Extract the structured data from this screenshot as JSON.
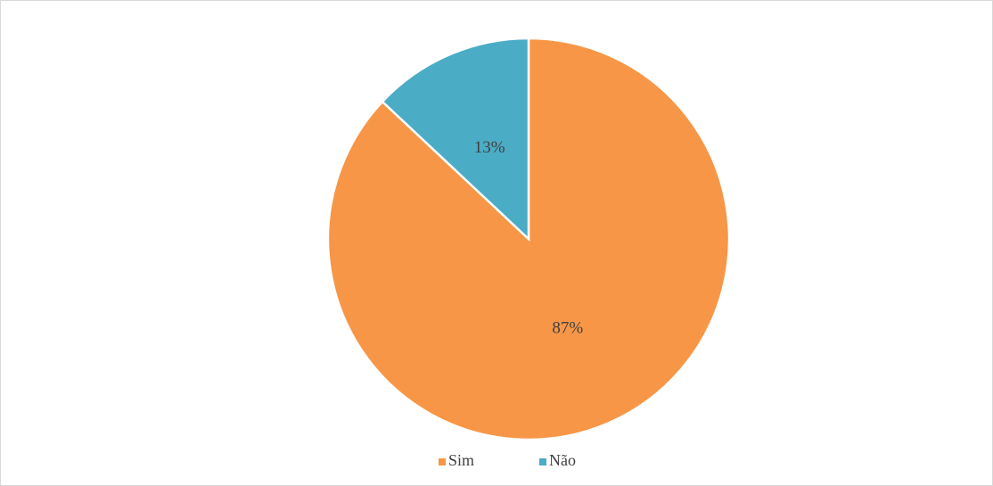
{
  "chart_data": {
    "type": "pie",
    "categories": [
      "Sim",
      "Não"
    ],
    "values": [
      87,
      13
    ],
    "value_labels": [
      "87%",
      "13%"
    ],
    "colors": [
      "#f79646",
      "#4bacc6"
    ],
    "legend": "bottom"
  }
}
